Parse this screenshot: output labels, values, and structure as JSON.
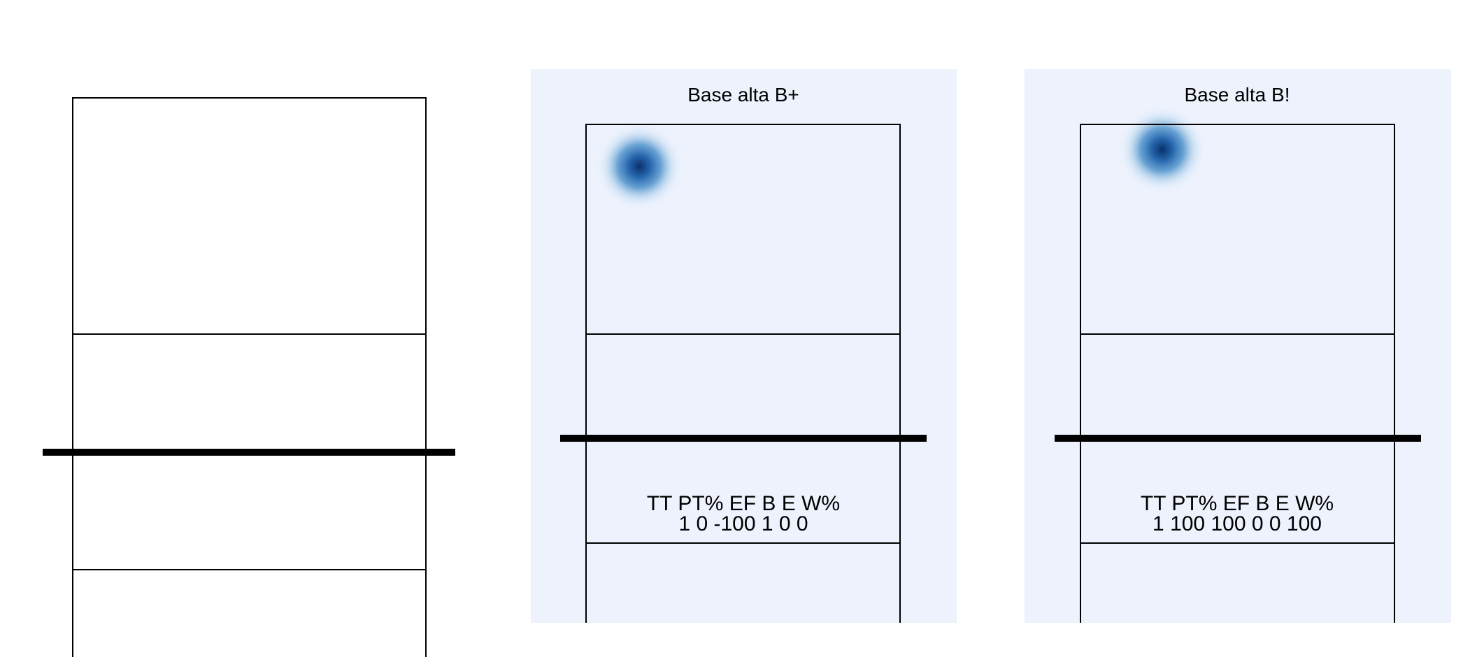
{
  "colors": {
    "panel_background": "#edf2fd",
    "heat_center": "#08306b",
    "heat_mid": "#2f7fc1",
    "court_line": "#000000",
    "net": "#000000",
    "page_background": "#ffffff"
  },
  "chart_data": [
    {
      "type": "heatmap",
      "title": "",
      "panel_background": false,
      "court": true,
      "hotspots": [],
      "stats": null
    },
    {
      "type": "heatmap",
      "title": "Base alta B+",
      "panel_background": true,
      "court": true,
      "hotspots": [
        {
          "x": 0.17,
          "y": 0.1,
          "intensity": 1
        }
      ],
      "stats": {
        "headers": [
          "TT",
          "PT%",
          "EF",
          "B",
          "E",
          "W%"
        ],
        "values": [
          "1",
          "0",
          "-100",
          "1",
          "0",
          "0"
        ]
      }
    },
    {
      "type": "heatmap",
      "title": "Base alta B!",
      "panel_background": true,
      "court": true,
      "hotspots": [
        {
          "x": 0.26,
          "y": 0.06,
          "intensity": 1
        }
      ],
      "stats": {
        "headers": [
          "TT",
          "PT%",
          "EF",
          "B",
          "E",
          "W%"
        ],
        "values": [
          "1",
          "100",
          "100",
          "0",
          "0",
          "100"
        ]
      }
    }
  ]
}
